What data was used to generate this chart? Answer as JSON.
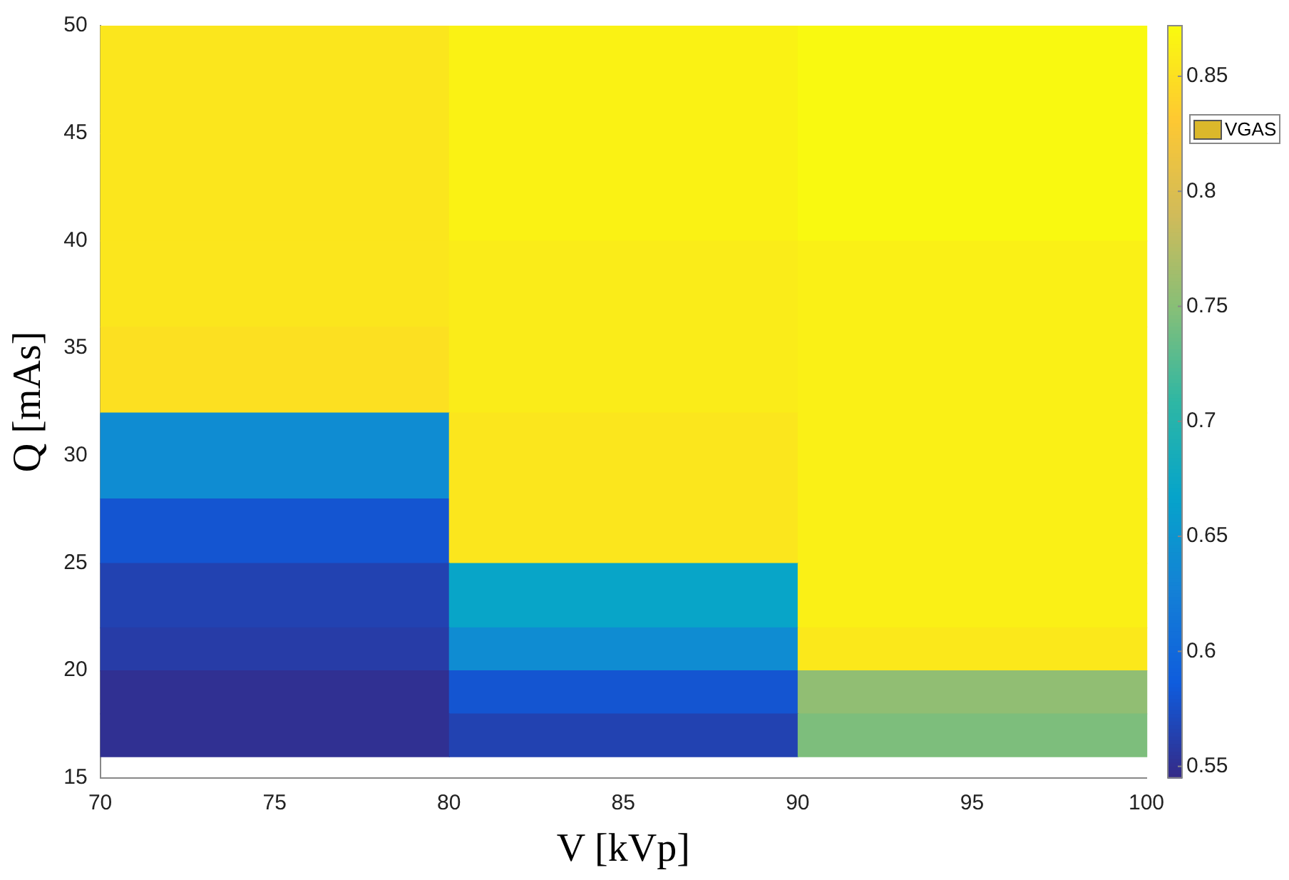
{
  "chart_data": {
    "type": "heatmap",
    "xlabel": "V [kVp]",
    "ylabel": "Q [mAs]",
    "legend_title": "VGAS",
    "color": "#dbb82b",
    "x": [
      75,
      85,
      95
    ],
    "y": [
      47.5,
      42.5,
      38,
      34,
      30,
      26.5,
      23.5,
      21,
      19,
      17
    ],
    "xlim": [
      70,
      100
    ],
    "xticks": [
      70,
      75,
      80,
      85,
      90,
      95,
      100
    ],
    "ylim": [
      15,
      50
    ],
    "yticks": [
      15,
      20,
      25,
      30,
      35,
      40,
      45,
      50
    ],
    "clim": [
      0.545,
      0.872
    ],
    "cticks": [
      0.55,
      0.6,
      0.65,
      0.7,
      0.75,
      0.8,
      0.85
    ],
    "cells": [
      [
        0.855,
        0.865,
        0.87
      ],
      [
        0.855,
        0.865,
        0.87
      ],
      [
        0.855,
        0.86,
        0.863
      ],
      [
        0.85,
        0.86,
        0.863
      ],
      [
        0.64,
        0.855,
        0.863
      ],
      [
        0.58,
        0.855,
        0.863
      ],
      [
        0.565,
        0.67,
        0.863
      ],
      [
        0.56,
        0.64,
        0.857
      ],
      [
        0.55,
        0.58,
        0.755
      ],
      [
        0.55,
        0.565,
        0.745
      ]
    ]
  }
}
